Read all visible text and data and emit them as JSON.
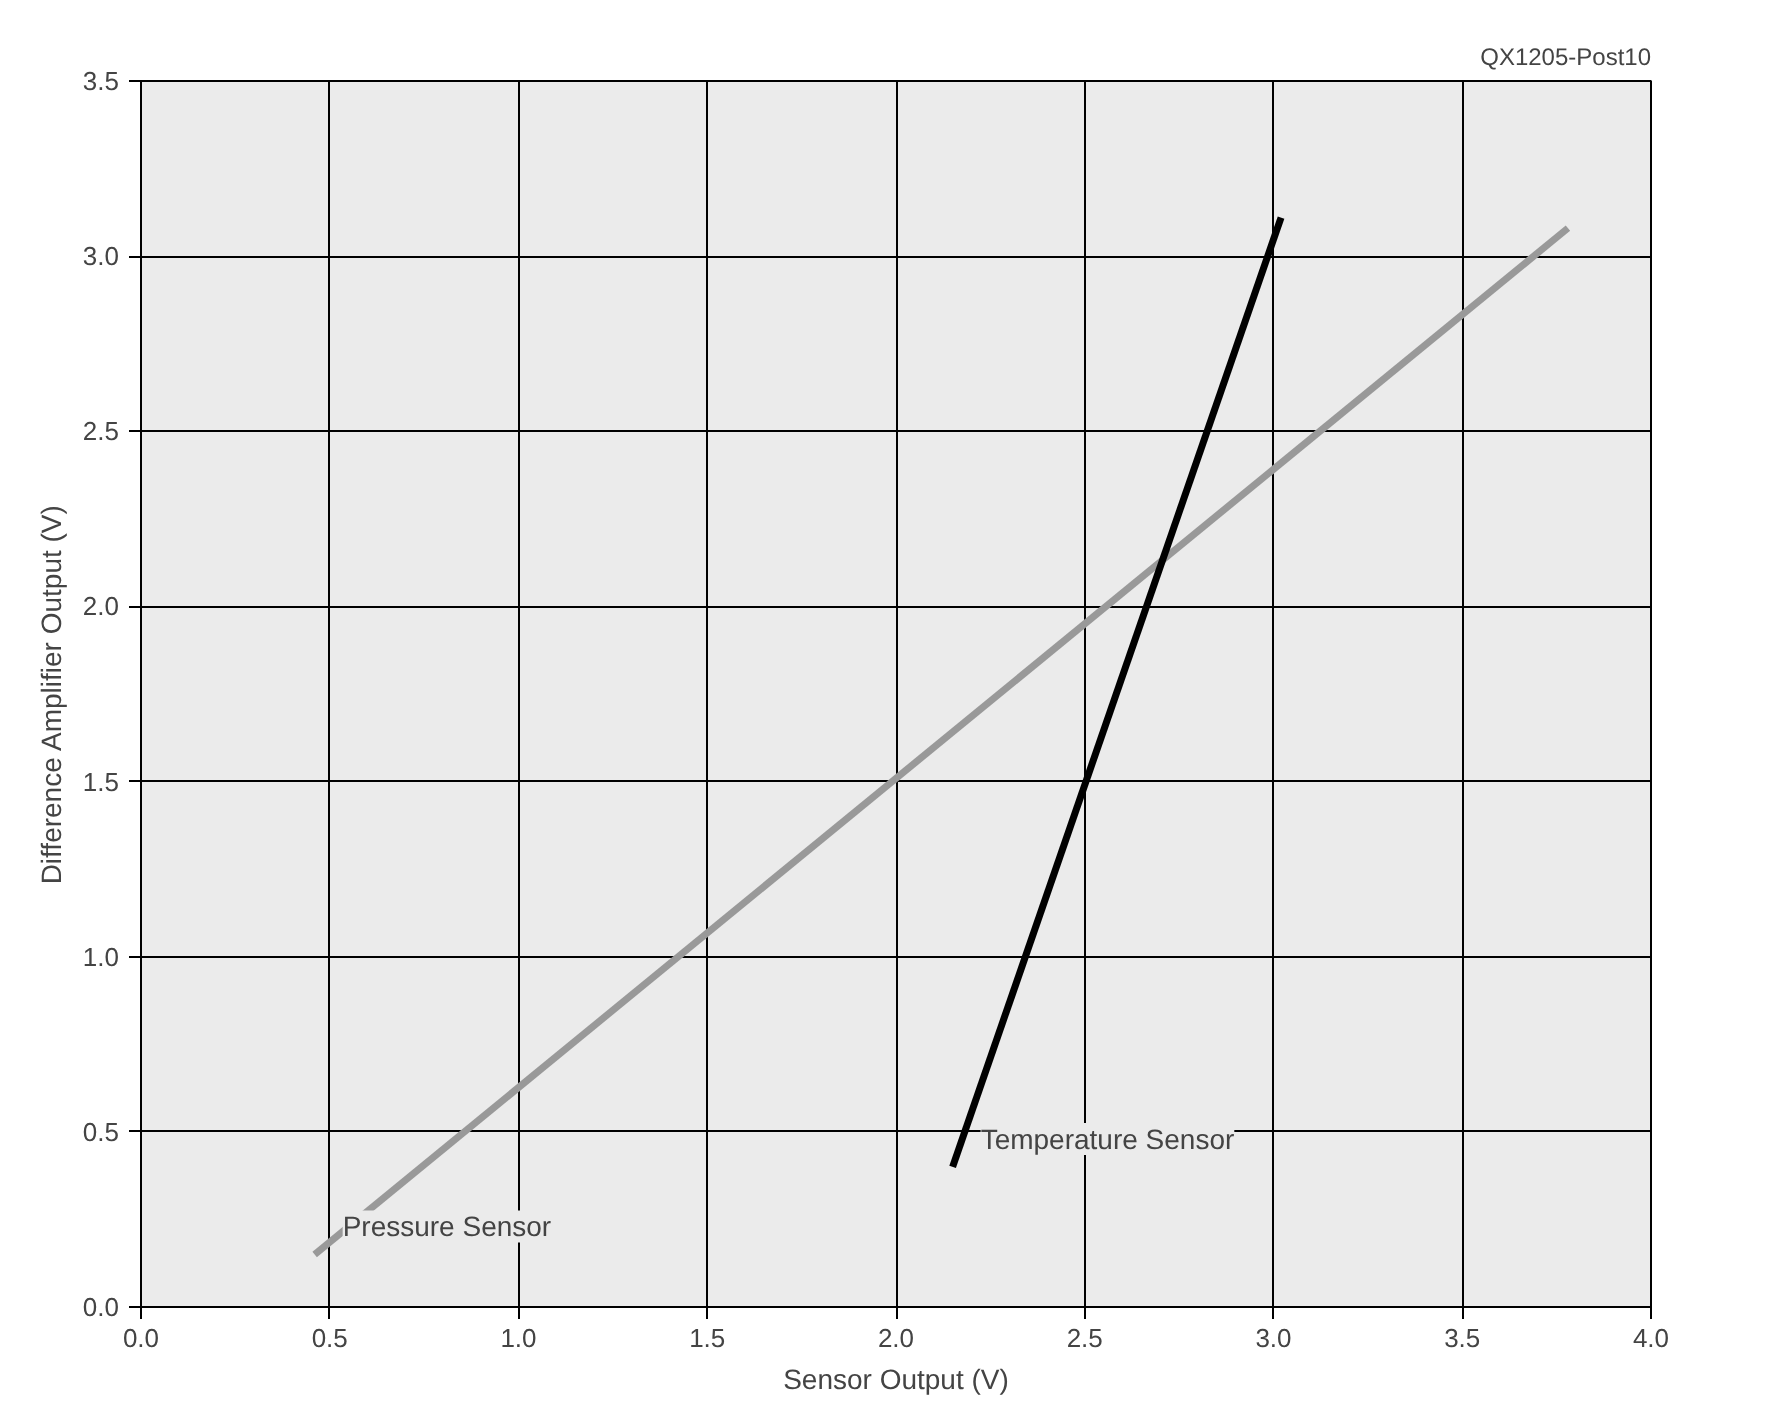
{
  "chart_data": {
    "type": "line",
    "xlabel": "Sensor Output (V)",
    "ylabel": "Difference Amplifier Output (V)",
    "xlim": [
      0,
      4
    ],
    "ylim": [
      0,
      3.5
    ],
    "xticks": [
      {
        "value": 0,
        "label": "0.0"
      },
      {
        "value": 0.5,
        "label": "0.5"
      },
      {
        "value": 1,
        "label": "1.0"
      },
      {
        "value": 1.5,
        "label": "1.5"
      },
      {
        "value": 2,
        "label": "2.0"
      },
      {
        "value": 2.5,
        "label": "2.5"
      },
      {
        "value": 3,
        "label": "3.0"
      },
      {
        "value": 3.5,
        "label": "3.5"
      },
      {
        "value": 4,
        "label": "4.0"
      }
    ],
    "yticks": [
      {
        "value": 0,
        "label": "0.0"
      },
      {
        "value": 0.5,
        "label": "0.5"
      },
      {
        "value": 1,
        "label": "1.0"
      },
      {
        "value": 1.5,
        "label": "1.5"
      },
      {
        "value": 2,
        "label": "2.0"
      },
      {
        "value": 2.5,
        "label": "2.5"
      },
      {
        "value": 3,
        "label": "3.0"
      },
      {
        "value": 3.5,
        "label": "3.5"
      }
    ],
    "grid": true,
    "line_style": "solid",
    "series": [
      {
        "name": "Pressure Sensor",
        "color": "#999999",
        "x": [
          0.46,
          3.78
        ],
        "values": [
          0.15,
          3.08
        ]
      },
      {
        "name": "Temperature Sensor",
        "color": "#000000",
        "x": [
          2.15,
          3.02
        ],
        "values": [
          0.4,
          3.11
        ]
      }
    ],
    "annotations": [
      "QX1205-Post10"
    ]
  }
}
